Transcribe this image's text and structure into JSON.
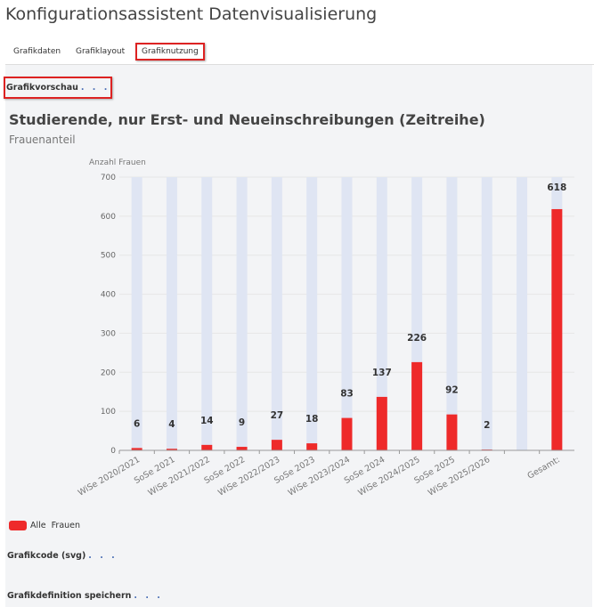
{
  "app": {
    "title": "Konfigurationsassistent Datenvisualisierung"
  },
  "tabs": [
    {
      "label": "Grafikdaten"
    },
    {
      "label": "Grafiklayout"
    },
    {
      "label": "Grafiknutzung"
    }
  ],
  "sections": {
    "preview": "Grafikvorschau",
    "code": "Grafikcode (svg)",
    "save": "Grafikdefinition speichern",
    "dots": ". . ."
  },
  "chart_data": {
    "type": "bar",
    "title": "Studierende, nur Erst- und Neueinschreibungen (Zeitreihe)",
    "subtitle": "Frauenanteil",
    "ylabel": "Anzahl Frauen",
    "ylim": [
      0,
      700
    ],
    "yticks": [
      0,
      100,
      200,
      300,
      400,
      500,
      600,
      700
    ],
    "categories": [
      "WiSe 2020/2021",
      "SoSe 2021",
      "WiSe 2021/2022",
      "SoSe 2022",
      "WiSe 2022/2023",
      "SoSe 2023",
      "WiSe 2023/2024",
      "SoSe 2024",
      "WiSe 2024/2025",
      "SoSe 2025",
      "WiSe 2025/2026",
      "",
      "Gesamt:"
    ],
    "series": [
      {
        "name": "Alle  Frauen",
        "values": [
          6,
          4,
          14,
          9,
          27,
          18,
          83,
          137,
          226,
          92,
          2,
          null,
          618
        ],
        "color": "#ee2a2a"
      }
    ],
    "background_color": "#dfe5f3",
    "legend": "bottom-left"
  }
}
